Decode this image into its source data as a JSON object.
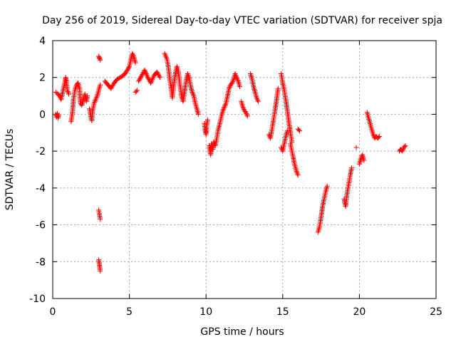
{
  "chart_data": {
    "type": "scatter",
    "title": "Day 256 of 2019, Sidereal Day-to-day VTEC variation (SDTVAR) for receiver spja",
    "xlabel": "GPS time / hours",
    "ylabel": "SDTVAR / TECUs",
    "xlim": [
      0,
      25
    ],
    "ylim": [
      -10,
      4
    ],
    "xticks": [
      0,
      5,
      10,
      15,
      20,
      25
    ],
    "xtick_labels": [
      "0",
      "5",
      "10",
      "15",
      "20",
      "25"
    ],
    "yticks": [
      -10,
      -8,
      -6,
      -4,
      -2,
      0,
      2,
      4
    ],
    "ytick_labels": [
      "-10",
      "-8",
      "-6",
      "-4",
      "-2",
      "0",
      "2",
      "4"
    ],
    "grid": true,
    "marker": "+",
    "colors": {
      "series": "#ff0000",
      "grid": "#a0a0a0",
      "axis": "#000000"
    },
    "segments": [
      [
        [
          0.2,
          0.0
        ],
        [
          0.25,
          -0.15
        ],
        [
          0.3,
          0.05
        ],
        [
          0.35,
          -0.2
        ],
        [
          0.4,
          -0.05
        ]
      ],
      [
        [
          0.2,
          1.2
        ],
        [
          0.35,
          1.1
        ],
        [
          0.45,
          1.0
        ],
        [
          0.55,
          0.8
        ],
        [
          0.65,
          1.2
        ],
        [
          0.75,
          1.6
        ],
        [
          0.85,
          2.0
        ],
        [
          0.9,
          1.8
        ],
        [
          0.95,
          1.3
        ],
        [
          1.05,
          1.1
        ]
      ],
      [
        [
          1.2,
          -0.4
        ],
        [
          1.3,
          0.2
        ],
        [
          1.35,
          0.8
        ],
        [
          1.45,
          1.3
        ],
        [
          1.55,
          1.6
        ],
        [
          1.65,
          1.7
        ],
        [
          1.75,
          1.4
        ],
        [
          1.8,
          0.6
        ],
        [
          1.9,
          0.5
        ],
        [
          2.0,
          0.8
        ],
        [
          2.1,
          1.1
        ],
        [
          2.2,
          0.7
        ],
        [
          2.25,
          1.0
        ]
      ],
      [
        [
          2.4,
          0.3
        ],
        [
          2.5,
          -0.2
        ],
        [
          2.55,
          -0.35
        ],
        [
          2.6,
          0.2
        ],
        [
          2.7,
          0.6
        ],
        [
          2.8,
          0.8
        ],
        [
          2.9,
          1.0
        ],
        [
          3.0,
          1.3
        ],
        [
          3.1,
          1.6
        ]
      ],
      [
        [
          3.0,
          3.15
        ],
        [
          3.05,
          3.05
        ],
        [
          3.1,
          2.95
        ]
      ],
      [
        [
          3.0,
          -5.2
        ],
        [
          3.05,
          -5.45
        ],
        [
          3.1,
          -5.7
        ]
      ],
      [
        [
          3.0,
          -7.9
        ],
        [
          3.05,
          -8.2
        ],
        [
          3.1,
          -8.5
        ]
      ],
      [
        [
          3.4,
          1.8
        ],
        [
          3.6,
          1.6
        ],
        [
          3.8,
          1.4
        ],
        [
          4.0,
          1.7
        ],
        [
          4.2,
          1.9
        ],
        [
          4.4,
          2.0
        ],
        [
          4.6,
          2.1
        ],
        [
          4.8,
          2.3
        ],
        [
          5.0,
          2.6
        ],
        [
          5.1,
          3.0
        ],
        [
          5.2,
          3.3
        ],
        [
          5.3,
          3.1
        ],
        [
          5.4,
          2.8
        ]
      ],
      [
        [
          5.4,
          1.2
        ],
        [
          5.5,
          1.3
        ]
      ],
      [
        [
          5.6,
          1.8
        ],
        [
          5.8,
          2.1
        ],
        [
          6.0,
          2.4
        ],
        [
          6.2,
          2.0
        ],
        [
          6.4,
          1.7
        ],
        [
          6.6,
          2.1
        ],
        [
          6.8,
          2.3
        ],
        [
          7.0,
          2.0
        ]
      ],
      [
        [
          7.3,
          3.3
        ],
        [
          7.45,
          3.0
        ],
        [
          7.55,
          2.5
        ],
        [
          7.65,
          1.8
        ],
        [
          7.75,
          1.3
        ],
        [
          7.8,
          0.9
        ],
        [
          7.9,
          1.6
        ],
        [
          8.0,
          2.2
        ],
        [
          8.1,
          2.6
        ],
        [
          8.2,
          2.3
        ],
        [
          8.3,
          1.6
        ],
        [
          8.4,
          1.0
        ],
        [
          8.5,
          0.7
        ],
        [
          8.6,
          1.2
        ],
        [
          8.7,
          1.8
        ],
        [
          8.8,
          2.2
        ],
        [
          8.9,
          2.0
        ],
        [
          9.0,
          1.5
        ],
        [
          9.1,
          1.2
        ],
        [
          9.2,
          1.0
        ],
        [
          9.3,
          0.6
        ],
        [
          9.4,
          0.3
        ],
        [
          9.5,
          0.0
        ]
      ],
      [
        [
          9.9,
          -0.5
        ],
        [
          9.95,
          -0.9
        ],
        [
          10.0,
          -1.1
        ],
        [
          10.05,
          -0.6
        ],
        [
          10.1,
          -0.3
        ]
      ],
      [
        [
          10.2,
          -1.7
        ],
        [
          10.3,
          -2.2
        ],
        [
          10.35,
          -1.6
        ],
        [
          10.45,
          -1.9
        ],
        [
          10.5,
          -1.5
        ],
        [
          10.6,
          -1.7
        ],
        [
          10.7,
          -1.3
        ],
        [
          10.8,
          -0.8
        ],
        [
          10.9,
          -0.5
        ],
        [
          11.0,
          -0.1
        ],
        [
          11.1,
          0.2
        ],
        [
          11.2,
          0.4
        ],
        [
          11.3,
          0.6
        ],
        [
          11.4,
          1.0
        ],
        [
          11.5,
          1.4
        ],
        [
          11.6,
          1.6
        ],
        [
          11.7,
          1.7
        ],
        [
          11.8,
          1.9
        ],
        [
          11.9,
          2.2
        ],
        [
          12.0,
          2.0
        ],
        [
          12.1,
          1.8
        ],
        [
          12.2,
          1.5
        ]
      ],
      [
        [
          12.3,
          0.7
        ],
        [
          12.4,
          0.4
        ],
        [
          12.5,
          0.2
        ],
        [
          12.6,
          0.1
        ],
        [
          12.7,
          -0.1
        ]
      ],
      [
        [
          12.9,
          2.2
        ],
        [
          13.0,
          1.9
        ],
        [
          13.1,
          1.5
        ],
        [
          13.2,
          1.2
        ],
        [
          13.3,
          0.9
        ],
        [
          13.4,
          0.7
        ]
      ],
      [
        [
          14.1,
          -1.1
        ],
        [
          14.2,
          -1.3
        ],
        [
          14.3,
          -0.8
        ],
        [
          14.4,
          -0.3
        ],
        [
          14.5,
          0.2
        ],
        [
          14.6,
          0.8
        ],
        [
          14.7,
          1.4
        ]
      ],
      [
        [
          14.9,
          2.2
        ],
        [
          15.0,
          1.7
        ],
        [
          15.1,
          1.3
        ],
        [
          15.2,
          0.8
        ],
        [
          15.3,
          0.2
        ],
        [
          15.4,
          -0.4
        ],
        [
          15.5,
          -1.0
        ],
        [
          15.6,
          -1.5
        ]
      ],
      [
        [
          14.9,
          -1.8
        ],
        [
          15.0,
          -2.0
        ],
        [
          15.1,
          -1.6
        ],
        [
          15.2,
          -1.2
        ],
        [
          15.3,
          -0.9
        ]
      ],
      [
        [
          15.5,
          -1.6
        ],
        [
          15.6,
          -2.0
        ],
        [
          15.7,
          -2.4
        ],
        [
          15.8,
          -2.8
        ],
        [
          15.9,
          -3.1
        ],
        [
          16.0,
          -3.3
        ]
      ],
      [
        [
          16.0,
          -0.8
        ],
        [
          16.1,
          -0.9
        ]
      ],
      [
        [
          17.3,
          -6.4
        ],
        [
          17.4,
          -6.1
        ],
        [
          17.5,
          -5.6
        ],
        [
          17.6,
          -5.0
        ],
        [
          17.7,
          -4.6
        ],
        [
          17.8,
          -4.2
        ],
        [
          17.9,
          -3.9
        ]
      ],
      [
        [
          19.0,
          -4.6
        ],
        [
          19.1,
          -5.0
        ],
        [
          19.2,
          -4.3
        ],
        [
          19.3,
          -3.8
        ],
        [
          19.4,
          -3.3
        ],
        [
          19.5,
          -2.9
        ]
      ],
      [
        [
          19.8,
          -1.8
        ]
      ],
      [
        [
          20.0,
          -2.7
        ],
        [
          20.1,
          -2.4
        ],
        [
          20.2,
          -2.2
        ],
        [
          20.3,
          -2.5
        ]
      ],
      [
        [
          20.5,
          0.1
        ],
        [
          20.6,
          -0.2
        ],
        [
          20.7,
          -0.5
        ],
        [
          20.8,
          -0.8
        ],
        [
          20.9,
          -1.1
        ],
        [
          21.0,
          -1.3
        ],
        [
          21.1,
          -1.2
        ],
        [
          21.2,
          -1.3
        ],
        [
          21.3,
          -1.2
        ]
      ],
      [
        [
          22.6,
          -2.0
        ],
        [
          22.7,
          -1.9
        ],
        [
          22.8,
          -2.0
        ],
        [
          22.9,
          -1.8
        ],
        [
          23.0,
          -1.7
        ]
      ]
    ]
  }
}
